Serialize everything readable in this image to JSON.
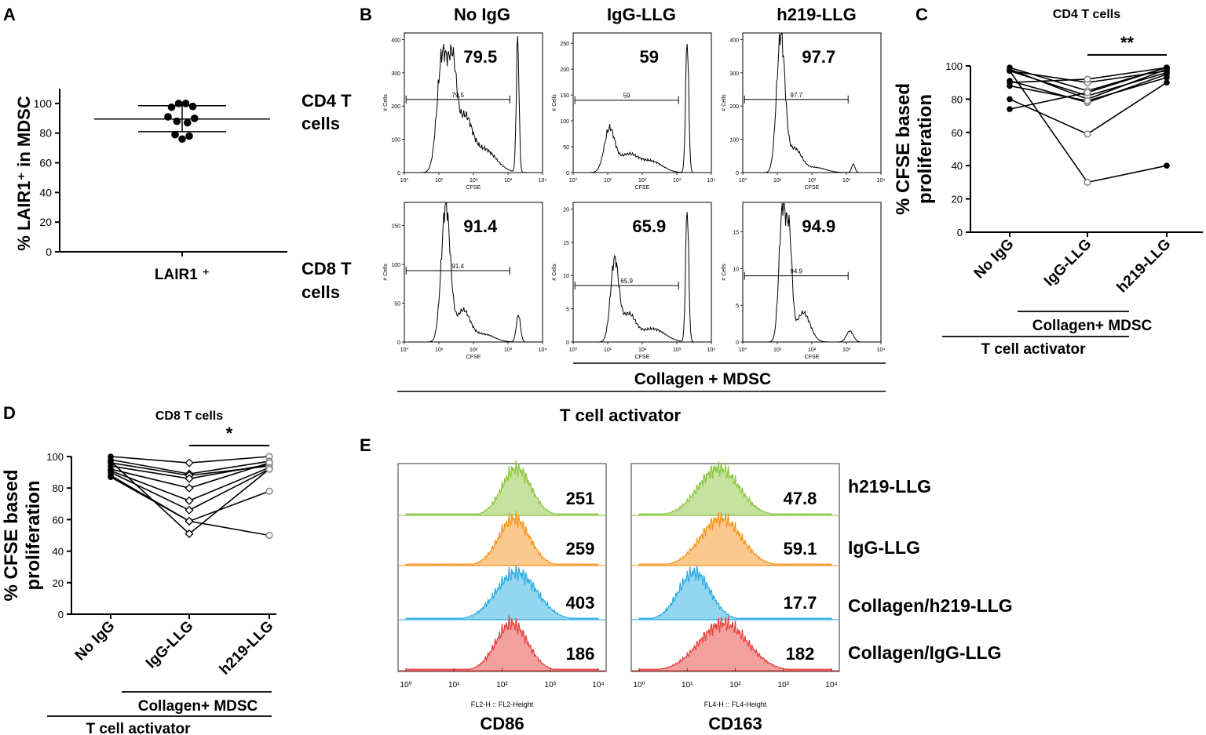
{
  "panel_letters": {
    "a": "A",
    "b": "B",
    "c": "C",
    "d": "D",
    "e": "E"
  },
  "colors": {
    "ink": "#000000",
    "open": "#888888",
    "green": "#8BC53F",
    "orange": "#F7941D",
    "blue": "#29ABE2",
    "red": "#E8413E"
  },
  "chart_data": [
    {
      "panel": "A",
      "type": "scatter",
      "ylabel": "% LAIR1⁺ in MDSC",
      "category": "LAIR1 ⁺",
      "ylim": [
        0,
        110
      ],
      "yticks": [
        "0",
        "20",
        "40",
        "60",
        "80",
        "100"
      ],
      "mean": 89.5,
      "sd_upper": 98.5,
      "sd_lower": 81,
      "points": [
        {
          "dx": -3,
          "y": 97.5
        },
        {
          "dx": -1,
          "y": 100
        },
        {
          "dx": 1,
          "y": 100
        },
        {
          "dx": 3,
          "y": 98
        },
        {
          "dx": -4,
          "y": 91
        },
        {
          "dx": -1.5,
          "y": 88
        },
        {
          "dx": 1.5,
          "y": 87
        },
        {
          "dx": 3.5,
          "y": 90
        },
        {
          "dx": -2,
          "y": 79
        },
        {
          "dx": 0,
          "y": 76
        },
        {
          "dx": 2,
          "y": 78
        }
      ],
      "side_labels": [
        [
          "CD4 T",
          "cells"
        ],
        [
          "CD8 T",
          "cells"
        ]
      ]
    },
    {
      "panel": "B",
      "type": "histogram",
      "column_titles": [
        "No IgG",
        "IgG-LLG",
        "h219-LLG"
      ],
      "ylabel": "# Cells",
      "xlabel": "CFSE",
      "xticks": [
        "10⁰",
        "10¹",
        "10²",
        "10³",
        "10⁴"
      ],
      "plots": [
        {
          "value": "79.5",
          "gate_label": "79.5",
          "yticks": [
            "0",
            "100",
            "200",
            "300",
            "400"
          ],
          "ymax": 420,
          "gate_y": 220,
          "peaks": [
            [
              1.1,
              350,
              0.15
            ],
            [
              1.4,
              280,
              0.12
            ],
            [
              1.75,
              150,
              0.2
            ],
            [
              2.3,
              70,
              0.35
            ],
            [
              3.28,
              400,
              0.04
            ]
          ]
        },
        {
          "value": "59",
          "gate_label": "59",
          "yticks": [
            "0",
            "50",
            "100",
            "150",
            "200",
            "250"
          ],
          "ymax": 270,
          "gate_y": 140,
          "peaks": [
            [
              1.05,
              80,
              0.15
            ],
            [
              1.6,
              35,
              0.3
            ],
            [
              2.3,
              20,
              0.3
            ],
            [
              3.3,
              255,
              0.045
            ]
          ]
        },
        {
          "value": "97.7",
          "gate_label": "97.7",
          "yticks": [
            "0",
            "100",
            "200",
            "300",
            "400"
          ],
          "ymax": 420,
          "gate_y": 220,
          "peaks": [
            [
              1.1,
              410,
              0.12
            ],
            [
              1.5,
              70,
              0.2
            ],
            [
              2.1,
              15,
              0.3
            ],
            [
              3.2,
              25,
              0.05
            ]
          ]
        },
        {
          "value": "91.4",
          "gate_label": "91.4",
          "yticks": [
            "0",
            "50",
            "100",
            "150"
          ],
          "ymax": 180,
          "gate_y": 92,
          "peaks": [
            [
              1.2,
              175,
              0.13
            ],
            [
              1.7,
              40,
              0.2
            ],
            [
              2.3,
              10,
              0.3
            ],
            [
              3.3,
              35,
              0.06
            ]
          ]
        },
        {
          "value": "65.9",
          "gate_label": "65.9",
          "yticks": [
            "0",
            "5",
            "10",
            "15",
            "20"
          ],
          "ymax": 21,
          "gate_y": 8.5,
          "peaks": [
            [
              1.2,
              12,
              0.12
            ],
            [
              1.6,
              4,
              0.2
            ],
            [
              2.3,
              2,
              0.35
            ],
            [
              3.3,
              20,
              0.045
            ]
          ]
        },
        {
          "value": "94.9",
          "gate_label": "94.9",
          "yticks": [
            "0",
            "5",
            "10",
            "15"
          ],
          "ymax": 19,
          "gate_y": 9,
          "peaks": [
            [
              1.15,
              18,
              0.1
            ],
            [
              1.35,
              13,
              0.08
            ],
            [
              1.75,
              4,
              0.2
            ],
            [
              3.1,
              1.5,
              0.1
            ]
          ]
        }
      ],
      "bottom_labels": {
        "collagen": "Collagen + MDSC",
        "activator": "T cell activator"
      }
    },
    {
      "panel": "C",
      "type": "line",
      "title": "CD4 T cells",
      "ylabel": [
        "% CFSE based",
        "proliferation"
      ],
      "categories": [
        "No IgG",
        "IgG-LLG",
        "h219-LLG"
      ],
      "ylim": [
        0,
        100
      ],
      "yticks": [
        "0",
        "20",
        "40",
        "60",
        "80",
        "100"
      ],
      "significance": "**",
      "series": [
        [
          99,
          85,
          99
        ],
        [
          98,
          80,
          98
        ],
        [
          97,
          90,
          97
        ],
        [
          97,
          82,
          96
        ],
        [
          91,
          78,
          95
        ],
        [
          90,
          92,
          99
        ],
        [
          88,
          79,
          93
        ],
        [
          80,
          59,
          90
        ],
        [
          74,
          84,
          99
        ],
        [
          97,
          30,
          40
        ]
      ],
      "mid_open": true,
      "bottom_labels": {
        "collagen": "Collagen+ MDSC",
        "activator": "T cell activator"
      }
    },
    {
      "panel": "D",
      "type": "line",
      "title": "CD8 T cells",
      "ylabel": [
        "% CFSE based",
        "proliferation"
      ],
      "categories": [
        "No IgG",
        "IgG-LLG",
        "h219-LLG"
      ],
      "ylim": [
        0,
        100
      ],
      "yticks": [
        "0",
        "20",
        "40",
        "60",
        "80",
        "100"
      ],
      "significance": "*",
      "series": [
        [
          100,
          96,
          100
        ],
        [
          98,
          89,
          97
        ],
        [
          96,
          88,
          94
        ],
        [
          94,
          86,
          95
        ],
        [
          92,
          80,
          96
        ],
        [
          91,
          72,
          93
        ],
        [
          90,
          66,
          92
        ],
        [
          88,
          59,
          78
        ],
        [
          97,
          51,
          92
        ],
        [
          87,
          59,
          50
        ]
      ],
      "bottom_labels": {
        "collagen": "Collagen+ MDSC",
        "activator": "T cell activator"
      }
    },
    {
      "panel": "E",
      "type": "histogram",
      "rows": [
        "h219-LLG",
        "IgG-LLG",
        "Collagen/h219-LLG",
        "Collagen/IgG-LLG"
      ],
      "row_colors": [
        "#8BC53F",
        "#F7941D",
        "#29ABE2",
        "#E8413E"
      ],
      "xticks": [
        "10⁰",
        "10¹",
        "10²",
        "10³",
        "10⁴"
      ],
      "columns": [
        {
          "marker": "CD86",
          "axis_label": "FL2-H :: FL2-Height",
          "values": [
            "251",
            "259",
            "403",
            "186"
          ],
          "centers": [
            2.3,
            2.25,
            2.3,
            2.2
          ],
          "widths": [
            0.3,
            0.32,
            0.42,
            0.33
          ]
        },
        {
          "marker": "CD163",
          "axis_label": "FL4-H :: FL4-Height",
          "values": [
            "47.8",
            "59.1",
            "17.7",
            "182"
          ],
          "centers": [
            1.65,
            1.7,
            1.15,
            1.75
          ],
          "widths": [
            0.42,
            0.42,
            0.33,
            0.5
          ]
        }
      ]
    }
  ]
}
